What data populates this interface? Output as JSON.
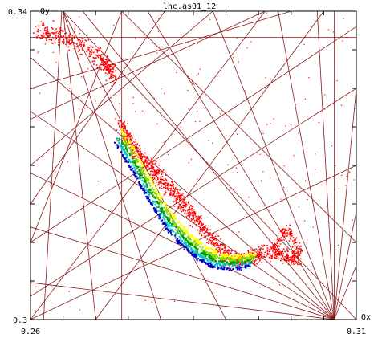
{
  "chart_data": {
    "type": "scatter",
    "title": "lhc.as01_12",
    "xlabel": "Qx",
    "ylabel": "Qy",
    "xlim": [
      0.26,
      0.31
    ],
    "ylim": [
      0.3,
      0.34
    ],
    "xticks": [
      {
        "value": 0.26,
        "label": "0.26"
      },
      {
        "value": 0.31,
        "label": "0.31"
      }
    ],
    "yticks": [
      {
        "value": 0.3,
        "label": "0.3"
      },
      {
        "value": 0.34,
        "label": "0.34"
      }
    ],
    "grid": false,
    "legend": "none",
    "series": [
      {
        "role": "diffusion-map",
        "color": "#ff0000",
        "regions": [
          {
            "name": "upper-left cloud",
            "points": [
              [
                0.2614,
                0.3375
              ],
              [
                0.2632,
                0.3372
              ],
              [
                0.2656,
                0.3366
              ],
              [
                0.268,
                0.3354
              ],
              [
                0.2704,
                0.3339
              ],
              [
                0.2719,
                0.333
              ],
              [
                0.2725,
                0.3315
              ]
            ]
          },
          {
            "name": "main band",
            "points": [
              [
                0.2737,
                0.3254
              ],
              [
                0.2759,
                0.3222
              ],
              [
                0.2785,
                0.3198
              ],
              [
                0.2809,
                0.3174
              ],
              [
                0.2833,
                0.3152
              ],
              [
                0.286,
                0.3124
              ],
              [
                0.2885,
                0.3097
              ],
              [
                0.2905,
                0.308
              ],
              [
                0.293,
                0.3078
              ],
              [
                0.2963,
                0.309
              ],
              [
                0.3011,
                0.3078
              ]
            ]
          },
          {
            "name": "right lobe",
            "points": [
              [
                0.297,
                0.309
              ],
              [
                0.2982,
                0.3107
              ],
              [
                0.2992,
                0.312
              ],
              [
                0.3003,
                0.3104
              ],
              [
                0.3014,
                0.3088
              ],
              [
                0.2983,
                0.3078
              ]
            ]
          }
        ]
      },
      {
        "role": "stable-band",
        "colors": [
          "#ffff00",
          "#7fe000",
          "#00a000",
          "#00c8c8",
          "#0000cc"
        ],
        "centerline": [
          [
            0.2738,
            0.3248
          ],
          [
            0.2765,
            0.321
          ],
          [
            0.279,
            0.3172
          ],
          [
            0.2815,
            0.3138
          ],
          [
            0.284,
            0.3114
          ],
          [
            0.2865,
            0.3096
          ],
          [
            0.289,
            0.3085
          ],
          [
            0.2915,
            0.3082
          ],
          [
            0.2945,
            0.3086
          ]
        ]
      }
    ],
    "resonance_lines": {
      "color": "#8b1a1a",
      "segments": [
        [
          [
            0.26,
            0.3366
          ],
          [
            0.31,
            0.3366
          ]
        ],
        [
          [
            0.3066,
            0.3
          ],
          [
            0.3066,
            0.34
          ]
        ],
        [
          [
            0.2648,
            0.34
          ],
          [
            0.262,
            0.3
          ]
        ],
        [
          [
            0.265,
            0.34
          ],
          [
            0.27,
            0.3
          ]
        ],
        [
          [
            0.265,
            0.34
          ],
          [
            0.28,
            0.3
          ]
        ],
        [
          [
            0.265,
            0.34
          ],
          [
            0.29,
            0.3
          ]
        ],
        [
          [
            0.265,
            0.34
          ],
          [
            0.31,
            0.3
          ]
        ],
        [
          [
            0.274,
            0.34
          ],
          [
            0.26,
            0.31
          ]
        ],
        [
          [
            0.274,
            0.34
          ],
          [
            0.274,
            0.3
          ]
        ],
        [
          [
            0.274,
            0.34
          ],
          [
            0.31,
            0.31
          ]
        ],
        [
          [
            0.2806,
            0.34
          ],
          [
            0.26,
            0.315
          ]
        ],
        [
          [
            0.288,
            0.34
          ],
          [
            0.26,
            0.32
          ]
        ],
        [
          [
            0.296,
            0.34
          ],
          [
            0.26,
            0.326
          ]
        ],
        [
          [
            0.305,
            0.34
          ],
          [
            0.27,
            0.3
          ]
        ],
        [
          [
            0.31,
            0.338
          ],
          [
            0.26,
            0.31
          ]
        ],
        [
          [
            0.31,
            0.33
          ],
          [
            0.26,
            0.303
          ]
        ],
        [
          [
            0.31,
            0.32
          ],
          [
            0.26,
            0.3
          ]
        ],
        [
          [
            0.26,
            0.33
          ],
          [
            0.3,
            0.34
          ]
        ],
        [
          [
            0.26,
            0.3
          ],
          [
            0.296,
            0.34
          ]
        ],
        [
          [
            0.26,
            0.3048
          ],
          [
            0.3066,
            0.3
          ]
        ],
        [
          [
            0.26,
            0.312
          ],
          [
            0.3066,
            0.3
          ]
        ],
        [
          [
            0.26,
            0.319
          ],
          [
            0.3066,
            0.3
          ]
        ],
        [
          [
            0.26,
            0.327
          ],
          [
            0.3066,
            0.3
          ]
        ],
        [
          [
            0.26,
            0.334
          ],
          [
            0.3066,
            0.3
          ]
        ],
        [
          [
            0.268,
            0.34
          ],
          [
            0.3066,
            0.3
          ]
        ],
        [
          [
            0.278,
            0.34
          ],
          [
            0.3066,
            0.3
          ]
        ],
        [
          [
            0.288,
            0.34
          ],
          [
            0.3066,
            0.3
          ]
        ],
        [
          [
            0.298,
            0.34
          ],
          [
            0.3066,
            0.3
          ]
        ],
        [
          [
            0.304,
            0.34
          ],
          [
            0.3066,
            0.3
          ]
        ],
        [
          [
            0.31,
            0.33
          ],
          [
            0.3066,
            0.3
          ]
        ],
        [
          [
            0.31,
            0.314
          ],
          [
            0.3066,
            0.3
          ]
        ],
        [
          [
            0.31,
            0.307
          ],
          [
            0.3066,
            0.3
          ]
        ]
      ]
    }
  }
}
